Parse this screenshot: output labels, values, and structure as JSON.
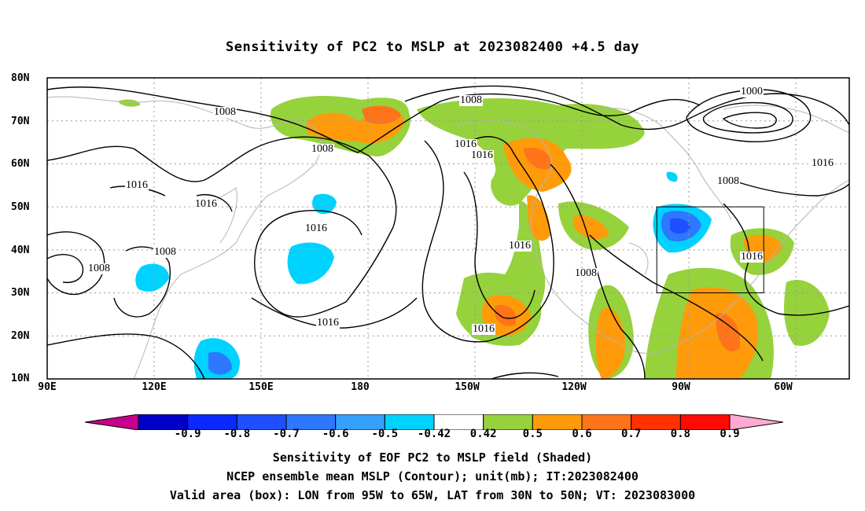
{
  "title": "Sensitivity of PC2 to MSLP at 2023082400 +4.5 day",
  "map": {
    "lat_labels": [
      "80N",
      "70N",
      "60N",
      "50N",
      "40N",
      "30N",
      "20N",
      "10N"
    ],
    "lon_labels": [
      "90E",
      "120E",
      "150E",
      "180",
      "150W",
      "120W",
      "90W",
      "60W"
    ],
    "extent": {
      "lon_min": 90,
      "lon_max": 315,
      "lat_min": 10,
      "lat_max": 80
    },
    "valid_box": {
      "lon_from": 265,
      "lon_to": 295,
      "lat_from": 30,
      "lat_to": 50
    },
    "contour_labels": [
      "1008",
      "1016",
      "1016",
      "1008",
      "1008",
      "1016",
      "1016",
      "1008",
      "1016",
      "1016",
      "1016",
      "1000",
      "1016",
      "1008",
      "1016",
      "1016",
      "1008",
      "1008"
    ]
  },
  "colorbar": {
    "ticks": [
      "-0.9",
      "-0.8",
      "-0.7",
      "-0.6",
      "-0.5",
      "-0.42",
      "0.42",
      "0.5",
      "0.6",
      "0.7",
      "0.8",
      "0.9"
    ],
    "colors": [
      "#c8008c",
      "#0000c8",
      "#0a28ff",
      "#1e50ff",
      "#2d78ff",
      "#36a0ff",
      "#00d2ff",
      "#ffffff",
      "#96d23c",
      "#ff9b0a",
      "#ff7319",
      "#ff3200",
      "#ff0a00",
      "#ffaad2"
    ]
  },
  "footer": {
    "line1": "Sensitivity of EOF PC2 to MSLP field (Shaded)",
    "line2": "NCEP ensemble mean MSLP (Contour); unit(mb); IT:2023082400",
    "line3": "Valid area (box): LON from 95W to 65W, LAT from 30N to 50N; VT: 2023083000"
  }
}
